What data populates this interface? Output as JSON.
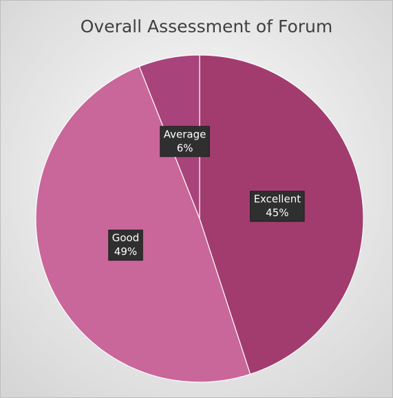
{
  "chart_data": {
    "type": "pie",
    "title": "Overall Assessment  of Forum",
    "categories": [
      "Excellent",
      "Good",
      "Average"
    ],
    "values": [
      45,
      49,
      6
    ],
    "value_labels": [
      "45%",
      "49%",
      "6%"
    ],
    "colors": [
      "#a23c6f",
      "#c9669a",
      "#a8447b"
    ]
  }
}
